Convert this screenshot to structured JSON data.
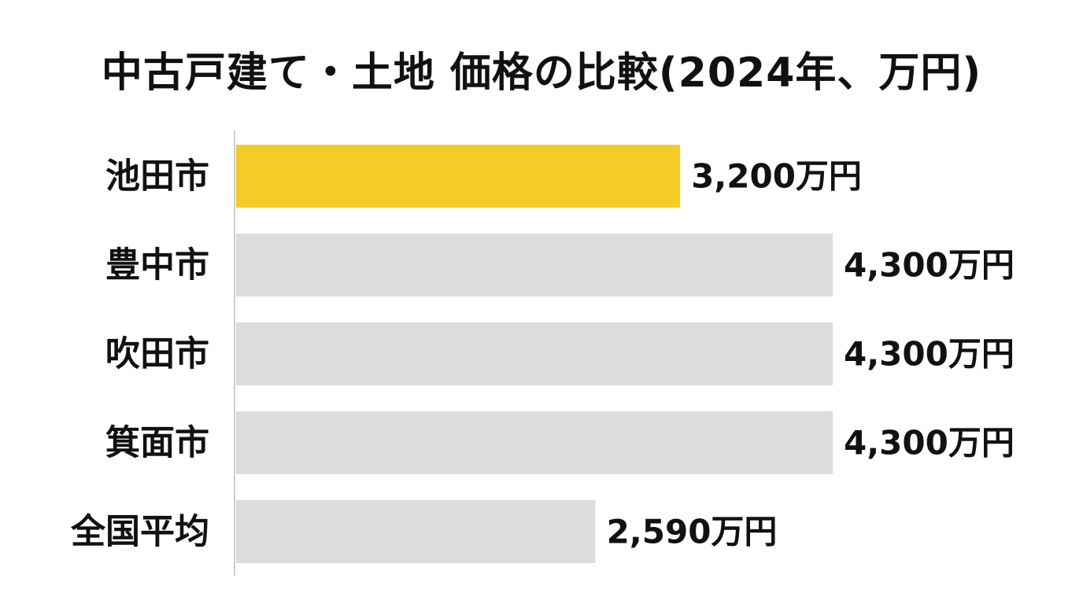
{
  "chart_data": {
    "type": "bar",
    "orientation": "horizontal",
    "title": "中古戸建て・土地 価格の比較(2024年、万円)",
    "categories": [
      "池田市",
      "豊中市",
      "吹田市",
      "箕面市",
      "全国平均"
    ],
    "values": [
      3200,
      4300,
      4300,
      4300,
      2590
    ],
    "value_labels": [
      "3,200万円",
      "4,300万円",
      "4,300万円",
      "4,300万円",
      "2,590万円"
    ],
    "unit": "万円",
    "xlim": [
      0,
      4300
    ],
    "grid": false,
    "legend": "none",
    "colors": {
      "highlight": "#F5CB26",
      "default": "#DCDCDC",
      "axis": "#CCCCCC"
    },
    "highlight_index": 0
  }
}
